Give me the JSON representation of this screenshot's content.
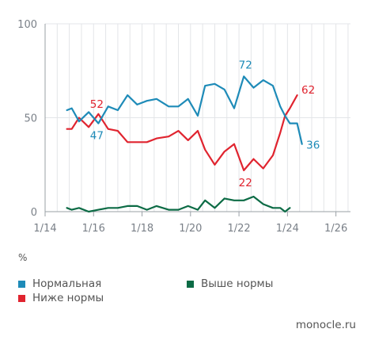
{
  "chart_data": {
    "type": "line",
    "unit": "%",
    "ylim": [
      0,
      100
    ],
    "yticks": [
      0,
      50,
      100
    ],
    "xlim": [
      2014,
      2026.6
    ],
    "xticks": [
      {
        "pos": 2014,
        "label": "1/14"
      },
      {
        "pos": 2016,
        "label": "1/16"
      },
      {
        "pos": 2018,
        "label": "1/18"
      },
      {
        "pos": 2020,
        "label": "1/20"
      },
      {
        "pos": 2022,
        "label": "1/22"
      },
      {
        "pos": 2024,
        "label": "1/24"
      },
      {
        "pos": 2026,
        "label": "1/26"
      }
    ],
    "grid": true,
    "legend_position": "bottom",
    "series": [
      {
        "name": "Нормальная",
        "color": "#1e8bb8",
        "x": [
          2014.9,
          2015.1,
          2015.4,
          2015.8,
          2016.2,
          2016.6,
          2017.0,
          2017.4,
          2017.8,
          2018.2,
          2018.6,
          2019.1,
          2019.5,
          2019.9,
          2020.3,
          2020.6,
          2021.0,
          2021.4,
          2021.8,
          2022.2,
          2022.6,
          2023.0,
          2023.4,
          2023.7,
          2023.9,
          2024.1,
          2024.4,
          2024.6,
          2024.8,
          2025.1
        ],
        "y": [
          54,
          55,
          48,
          53,
          47,
          56,
          54,
          62,
          57,
          59,
          60,
          56,
          56,
          60,
          51,
          67,
          68,
          65,
          55,
          72,
          66,
          70,
          67,
          56,
          51,
          47,
          47,
          36,
          null,
          null
        ]
      },
      {
        "name": "Ниже нормы",
        "color": "#e0242f",
        "x": [
          2014.9,
          2015.1,
          2015.4,
          2015.8,
          2016.2,
          2016.6,
          2017.0,
          2017.4,
          2017.8,
          2018.2,
          2018.6,
          2019.1,
          2019.5,
          2019.9,
          2020.3,
          2020.6,
          2021.0,
          2021.4,
          2021.8,
          2022.2,
          2022.6,
          2023.0,
          2023.4,
          2023.7,
          2023.9,
          2024.1,
          2024.4,
          2024.6,
          2024.8,
          2025.1
        ],
        "y": [
          44,
          44,
          50,
          45,
          52,
          44,
          43,
          37,
          37,
          37,
          39,
          40,
          43,
          38,
          43,
          33,
          25,
          32,
          36,
          22,
          28,
          23,
          30,
          42,
          51,
          55,
          62,
          null,
          null,
          null
        ]
      },
      {
        "name": "Выше нормы",
        "color": "#0c6b45",
        "x": [
          2014.9,
          2015.1,
          2015.4,
          2015.8,
          2016.2,
          2016.6,
          2017.0,
          2017.4,
          2017.8,
          2018.2,
          2018.6,
          2019.1,
          2019.5,
          2019.9,
          2020.3,
          2020.6,
          2021.0,
          2021.4,
          2021.8,
          2022.2,
          2022.6,
          2023.0,
          2023.4,
          2023.7,
          2023.9,
          2024.1,
          2024.4,
          2024.6,
          2024.8,
          2025.1
        ],
        "y": [
          2,
          1,
          2,
          0,
          1,
          2,
          2,
          3,
          3,
          1,
          3,
          1,
          1,
          3,
          1,
          6,
          2,
          7,
          6,
          6,
          8,
          4,
          2,
          2,
          0,
          2,
          null,
          null,
          null,
          null
        ]
      }
    ],
    "annotations": [
      {
        "series": 0,
        "index": 4,
        "text": "47",
        "dx": -2,
        "dy": 20
      },
      {
        "series": 0,
        "index": 19,
        "text": "72",
        "dx": 2,
        "dy": -10
      },
      {
        "series": 0,
        "index": 27,
        "text": "36",
        "dx": 14,
        "dy": 6
      },
      {
        "series": 1,
        "index": 4,
        "text": "52",
        "dx": -2,
        "dy": -8
      },
      {
        "series": 1,
        "index": 19,
        "text": "22",
        "dx": 2,
        "dy": 20
      },
      {
        "series": 1,
        "index": 26,
        "text": "62",
        "dx": 14,
        "dy": -2
      }
    ]
  },
  "legend": {
    "unit": "%",
    "items": [
      {
        "label": "Нормальная",
        "color": "#1e8bb8"
      },
      {
        "label": "Ниже нормы",
        "color": "#e0242f"
      },
      {
        "label": "Выше нормы",
        "color": "#0c6b45"
      }
    ]
  },
  "source": "monocle.ru"
}
